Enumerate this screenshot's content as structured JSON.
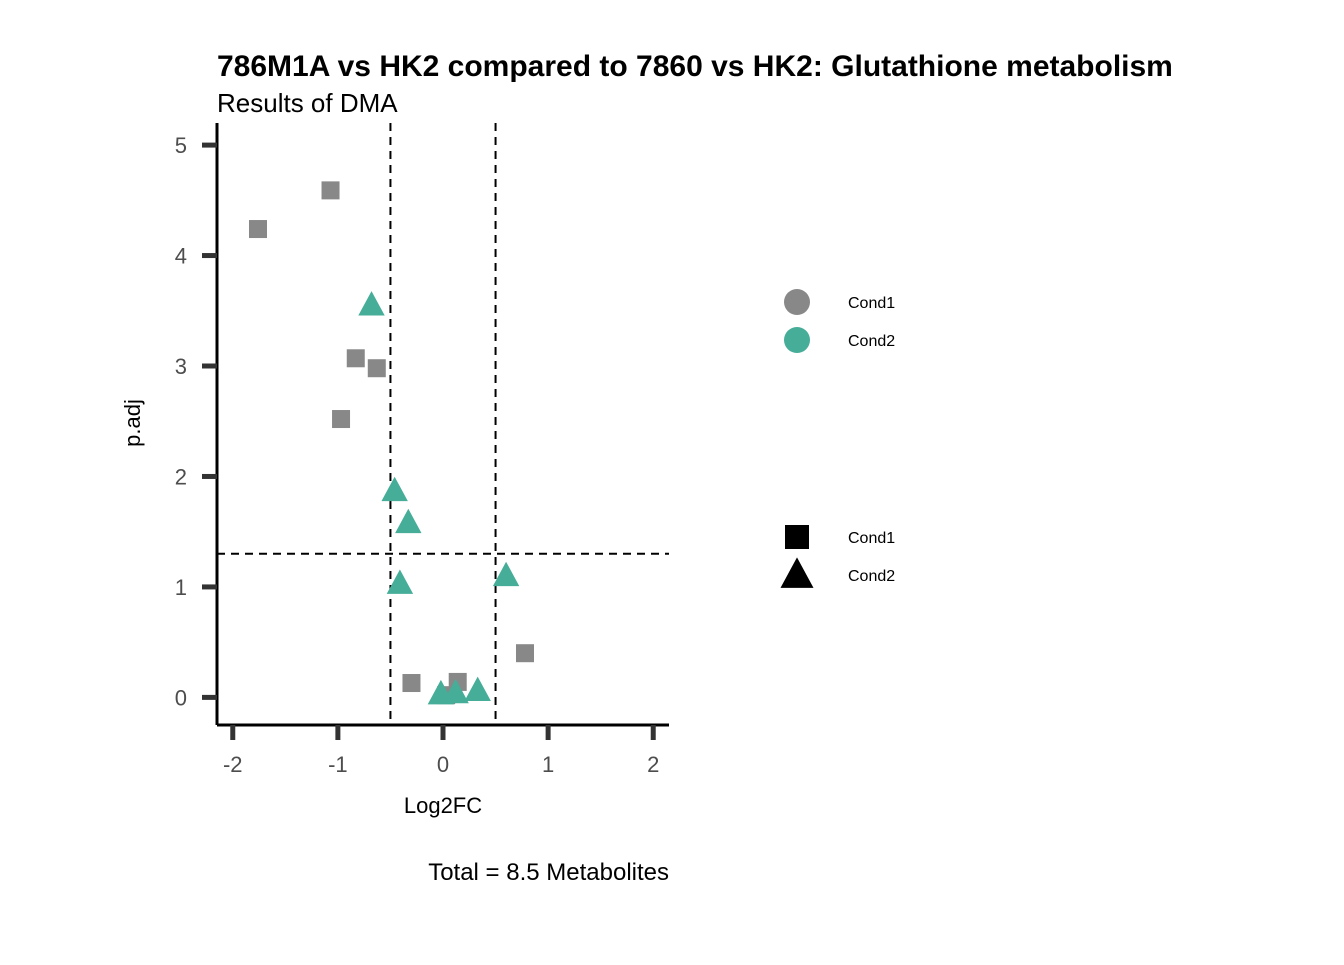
{
  "chart_data": {
    "type": "scatter",
    "title": "786M1A vs HK2 compared to 7860 vs HK2: Glutathione metabolism",
    "subtitle": "Results of DMA",
    "xlabel": "Log2FC",
    "ylabel": "p.adj",
    "caption": "Total = 8.5 Metabolites",
    "xlim": [
      -2.15,
      2.15
    ],
    "ylim": [
      -0.25,
      5.2
    ],
    "x_ticks": [
      -2,
      -1,
      0,
      1,
      2
    ],
    "x_tick_labels": [
      "-2",
      "-1",
      "0",
      "1",
      "2"
    ],
    "y_ticks": [
      0,
      1,
      2,
      3,
      4,
      5
    ],
    "y_tick_labels": [
      "0",
      "1",
      "2",
      "3",
      "4",
      "5"
    ],
    "grid": false,
    "threshold_lines": {
      "vertical": [
        -0.5,
        0.5
      ],
      "horizontal": [
        1.3
      ]
    },
    "colors": {
      "cond1": "#888888",
      "cond2": "#45ad98",
      "axis": "#000000",
      "tick": "#333333"
    },
    "legend_color": {
      "placement": "right",
      "entries": [
        {
          "label": "Cond1",
          "color": "#888888",
          "shape": "circle"
        },
        {
          "label": "Cond2",
          "color": "#45ad98",
          "shape": "circle"
        }
      ]
    },
    "legend_shape": {
      "placement": "right",
      "entries": [
        {
          "label": "Cond1",
          "color": "#000000",
          "shape": "square"
        },
        {
          "label": "Cond2",
          "color": "#000000",
          "shape": "triangle"
        }
      ]
    },
    "series": [
      {
        "shape": "square",
        "color": "#888888",
        "points": [
          {
            "x": -1.07,
            "y": 4.59
          },
          {
            "x": -1.76,
            "y": 4.24
          },
          {
            "x": -0.83,
            "y": 3.07
          },
          {
            "x": -0.63,
            "y": 2.98
          },
          {
            "x": -0.97,
            "y": 2.52
          },
          {
            "x": 0.78,
            "y": 0.4
          },
          {
            "x": -0.3,
            "y": 0.13
          },
          {
            "x": 0.14,
            "y": 0.14
          },
          {
            "x": 0.03,
            "y": 0.02
          }
        ]
      },
      {
        "shape": "triangle",
        "color": "#45ad98",
        "points": [
          {
            "x": -0.68,
            "y": 3.55
          },
          {
            "x": -0.46,
            "y": 1.87
          },
          {
            "x": -0.33,
            "y": 1.58
          },
          {
            "x": -0.41,
            "y": 1.03
          },
          {
            "x": 0.6,
            "y": 1.1
          },
          {
            "x": 0.33,
            "y": 0.06
          },
          {
            "x": -0.02,
            "y": 0.03
          },
          {
            "x": 0.12,
            "y": 0.04
          }
        ]
      }
    ]
  }
}
